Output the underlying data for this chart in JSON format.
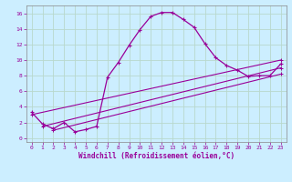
{
  "xlabel": "Windchill (Refroidissement éolien,°C)",
  "bg_color": "#cceeff",
  "line_color": "#990099",
  "grid_color": "#aaddcc",
  "xlim": [
    -0.5,
    23.5
  ],
  "ylim": [
    -0.5,
    17
  ],
  "xticks": [
    0,
    1,
    2,
    3,
    4,
    5,
    6,
    7,
    8,
    9,
    10,
    11,
    12,
    13,
    14,
    15,
    16,
    17,
    18,
    19,
    20,
    21,
    22,
    23
  ],
  "yticks": [
    0,
    2,
    4,
    6,
    8,
    10,
    12,
    14,
    16
  ],
  "main_x": [
    0,
    1,
    2,
    3,
    4,
    5,
    6,
    7,
    8,
    9,
    10,
    11,
    12,
    13,
    14,
    15,
    16,
    17,
    18,
    19,
    20,
    21,
    22,
    23
  ],
  "main_y": [
    3.3,
    1.8,
    1.2,
    2.0,
    0.8,
    1.1,
    1.5,
    7.8,
    9.7,
    11.9,
    13.9,
    15.6,
    16.1,
    16.1,
    15.2,
    14.2,
    12.1,
    10.3,
    9.3,
    8.7,
    7.9,
    8.0,
    8.0,
    9.5
  ],
  "line2_x": [
    0,
    23
  ],
  "line2_y": [
    3.0,
    10.0
  ],
  "line3_x": [
    1,
    23
  ],
  "line3_y": [
    1.5,
    9.0
  ],
  "line4_x": [
    2,
    23
  ],
  "line4_y": [
    1.0,
    8.2
  ]
}
